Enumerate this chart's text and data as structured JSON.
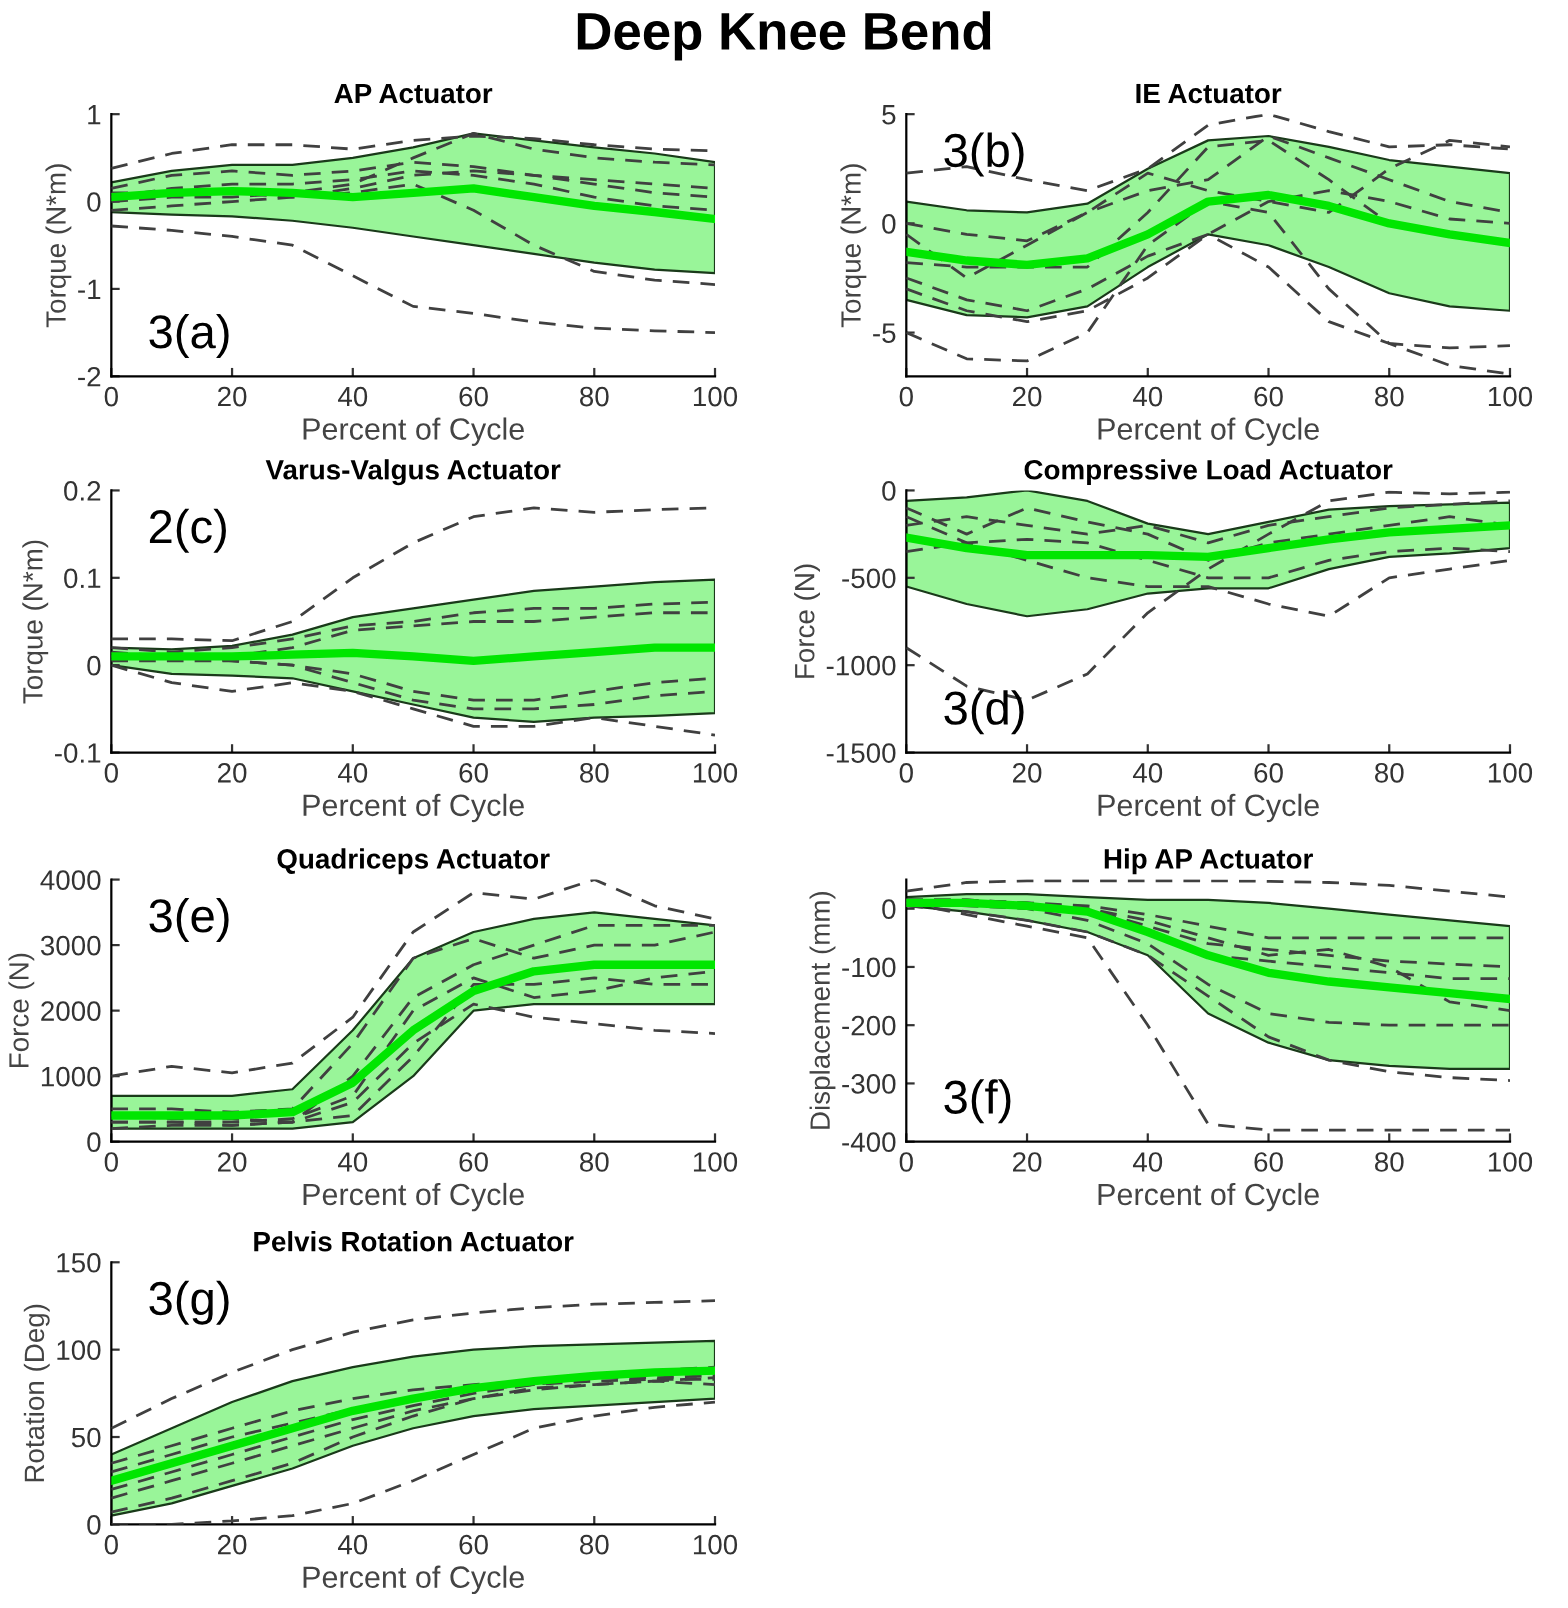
{
  "chart_data": [
    {
      "type": "other",
      "title": "Deep Knee Bend"
    },
    {
      "type": "line",
      "title": "AP Actuator",
      "xlabel": "Percent of Cycle",
      "ylabel": "Torque (N*m)",
      "annotations": [
        "3(a)"
      ],
      "x": [
        0,
        10,
        20,
        30,
        40,
        50,
        60,
        70,
        80,
        90,
        100
      ],
      "xlim": [
        0,
        100
      ],
      "xticks": [
        0,
        20,
        40,
        60,
        80,
        100
      ],
      "ylim": [
        -2,
        1
      ],
      "yticks": [
        -2,
        -1,
        0,
        1
      ],
      "series": [
        {
          "color": "#00e600",
          "line_style": "solid",
          "values": [
            0.05,
            0.1,
            0.12,
            0.1,
            0.05,
            0.1,
            0.15,
            0.05,
            -0.05,
            -0.12,
            -0.2
          ],
          "lower": [
            -0.12,
            -0.15,
            -0.17,
            -0.22,
            -0.3,
            -0.4,
            -0.5,
            -0.6,
            -0.7,
            -0.78,
            -0.82
          ],
          "upper": [
            0.22,
            0.35,
            0.42,
            0.42,
            0.5,
            0.62,
            0.78,
            0.7,
            0.62,
            0.55,
            0.45
          ]
        },
        {
          "color": "#404040",
          "line_style": "dashed",
          "values": [
            0.38,
            0.55,
            0.65,
            0.65,
            0.6,
            0.7,
            0.75,
            0.72,
            0.65,
            0.6,
            0.58
          ]
        },
        {
          "color": "#404040",
          "line_style": "dashed",
          "values": [
            -0.28,
            -0.33,
            -0.4,
            -0.5,
            -0.85,
            -1.2,
            -1.28,
            -1.38,
            -1.45,
            -1.48,
            -1.5
          ]
        },
        {
          "color": "#404040",
          "line_style": "dashed",
          "values": [
            0.0,
            0.05,
            0.05,
            0.1,
            0.2,
            0.5,
            0.78,
            0.6,
            0.5,
            0.45,
            0.42
          ]
        },
        {
          "color": "#404040",
          "line_style": "dashed",
          "values": [
            0.15,
            0.3,
            0.35,
            0.3,
            0.35,
            0.45,
            0.4,
            0.3,
            0.25,
            0.2,
            0.15
          ]
        },
        {
          "color": "#404040",
          "line_style": "dashed",
          "values": [
            0.1,
            0.1,
            0.1,
            0.05,
            0.1,
            0.2,
            -0.1,
            -0.5,
            -0.8,
            -0.9,
            -0.95
          ]
        },
        {
          "color": "#404040",
          "line_style": "dashed",
          "values": [
            -0.1,
            -0.05,
            0.0,
            0.05,
            0.15,
            0.3,
            0.35,
            0.3,
            0.2,
            0.1,
            0.05
          ]
        },
        {
          "color": "#404040",
          "line_style": "dashed",
          "values": [
            0.05,
            0.15,
            0.2,
            0.2,
            0.25,
            0.35,
            0.3,
            0.2,
            0.05,
            -0.05,
            -0.1
          ]
        }
      ]
    },
    {
      "type": "line",
      "title": "IE Actuator",
      "xlabel": "Percent of Cycle",
      "ylabel": "Torque (N*m)",
      "annotations": [
        "3(b)"
      ],
      "x": [
        0,
        10,
        20,
        30,
        40,
        50,
        60,
        70,
        80,
        90,
        100
      ],
      "xlim": [
        0,
        100
      ],
      "xticks": [
        0,
        20,
        40,
        60,
        80,
        100
      ],
      "ylim": [
        -7,
        5
      ],
      "yticks": [
        -5,
        0,
        5
      ],
      "series": [
        {
          "color": "#00e600",
          "line_style": "solid",
          "values": [
            -1.3,
            -1.7,
            -1.9,
            -1.6,
            -0.5,
            1.0,
            1.3,
            0.8,
            0.0,
            -0.5,
            -0.9
          ],
          "lower": [
            -3.5,
            -4.2,
            -4.3,
            -3.8,
            -2.0,
            -0.5,
            -1.0,
            -2.0,
            -3.2,
            -3.8,
            -4.0
          ],
          "upper": [
            1.0,
            0.6,
            0.5,
            0.9,
            2.5,
            3.8,
            4.0,
            3.5,
            2.9,
            2.6,
            2.3
          ]
        },
        {
          "color": "#404040",
          "line_style": "dashed",
          "values": [
            2.3,
            2.6,
            2.0,
            1.5,
            2.5,
            4.5,
            5.0,
            4.2,
            3.5,
            3.6,
            3.4
          ]
        },
        {
          "color": "#404040",
          "line_style": "dashed",
          "values": [
            -5.0,
            -6.2,
            -6.3,
            -5.0,
            -1.0,
            1.0,
            0.5,
            -3.0,
            -5.5,
            -5.7,
            -5.6
          ]
        },
        {
          "color": "#404040",
          "line_style": "dashed",
          "values": [
            -0.5,
            -2.5,
            -1.0,
            0.5,
            1.5,
            2.0,
            4.0,
            3.0,
            2.0,
            1.0,
            0.5
          ]
        },
        {
          "color": "#404040",
          "line_style": "dashed",
          "values": [
            -2.5,
            -3.5,
            -4.0,
            -3.0,
            -1.5,
            -0.5,
            -2.0,
            -4.5,
            -5.5,
            -6.5,
            -6.9
          ]
        },
        {
          "color": "#404040",
          "line_style": "dashed",
          "values": [
            -1.8,
            -2.0,
            -2.0,
            -2.0,
            0.5,
            3.5,
            3.8,
            2.0,
            0.0,
            -0.5,
            -0.8
          ]
        },
        {
          "color": "#404040",
          "line_style": "dashed",
          "values": [
            0.0,
            -0.5,
            -0.8,
            0.5,
            2.3,
            1.5,
            1.0,
            0.5,
            2.5,
            3.8,
            3.5
          ]
        },
        {
          "color": "#404040",
          "line_style": "dashed",
          "values": [
            -3.0,
            -4.0,
            -4.5,
            -4.0,
            -2.5,
            -0.5,
            1.0,
            1.5,
            1.0,
            0.2,
            0.0
          ]
        }
      ]
    },
    {
      "type": "line",
      "title": "Varus-Valgus Actuator",
      "xlabel": "Percent of Cycle",
      "ylabel": "Torque (N*m)",
      "annotations": [
        "2(c)"
      ],
      "x": [
        0,
        10,
        20,
        30,
        40,
        50,
        60,
        70,
        80,
        90,
        100
      ],
      "xlim": [
        0,
        100
      ],
      "xticks": [
        0,
        20,
        40,
        60,
        80,
        100
      ],
      "ylim": [
        -0.1,
        0.2
      ],
      "yticks": [
        -0.1,
        0,
        0.1,
        0.2
      ],
      "series": [
        {
          "color": "#00e600",
          "line_style": "solid",
          "values": [
            0.01,
            0.01,
            0.01,
            0.012,
            0.014,
            0.01,
            0.005,
            0.01,
            0.015,
            0.02,
            0.02
          ],
          "lower": [
            0.0,
            -0.01,
            -0.012,
            -0.015,
            -0.03,
            -0.045,
            -0.06,
            -0.065,
            -0.06,
            -0.058,
            -0.055
          ],
          "upper": [
            0.02,
            0.018,
            0.022,
            0.035,
            0.055,
            0.065,
            0.075,
            0.085,
            0.09,
            0.095,
            0.098
          ]
        },
        {
          "color": "#404040",
          "line_style": "dashed",
          "values": [
            0.03,
            0.03,
            0.028,
            0.05,
            0.1,
            0.14,
            0.17,
            0.18,
            0.175,
            0.178,
            0.18
          ]
        },
        {
          "color": "#404040",
          "line_style": "dashed",
          "values": [
            0.0,
            -0.02,
            -0.03,
            -0.02,
            -0.03,
            -0.05,
            -0.07,
            -0.07,
            -0.06,
            -0.07,
            -0.08
          ]
        },
        {
          "color": "#404040",
          "line_style": "dashed",
          "values": [
            0.02,
            0.015,
            0.02,
            0.03,
            0.045,
            0.05,
            0.06,
            0.065,
            0.065,
            0.07,
            0.072
          ]
        },
        {
          "color": "#404040",
          "line_style": "dashed",
          "values": [
            0.01,
            0.01,
            0.01,
            0.02,
            0.04,
            0.045,
            0.05,
            0.05,
            0.055,
            0.06,
            0.06
          ]
        },
        {
          "color": "#404040",
          "line_style": "dashed",
          "values": [
            0.015,
            0.01,
            0.005,
            0.0,
            -0.01,
            -0.03,
            -0.04,
            -0.04,
            -0.03,
            -0.02,
            -0.015
          ]
        },
        {
          "color": "#404040",
          "line_style": "dashed",
          "values": [
            0.005,
            0.005,
            0.005,
            0.0,
            -0.02,
            -0.04,
            -0.05,
            -0.05,
            -0.045,
            -0.035,
            -0.03
          ]
        }
      ]
    },
    {
      "type": "line",
      "title": "Compressive Load Actuator",
      "xlabel": "Percent of Cycle",
      "ylabel": "Force (N)",
      "annotations": [
        "3(d)"
      ],
      "x": [
        0,
        10,
        20,
        30,
        40,
        50,
        60,
        70,
        80,
        90,
        100
      ],
      "xlim": [
        0,
        100
      ],
      "xticks": [
        0,
        20,
        40,
        60,
        80,
        100
      ],
      "ylim": [
        -1500,
        0
      ],
      "yticks": [
        -1500,
        -1000,
        -500,
        0
      ],
      "series": [
        {
          "color": "#00e600",
          "line_style": "solid",
          "values": [
            -270,
            -330,
            -370,
            -370,
            -370,
            -380,
            -330,
            -280,
            -240,
            -220,
            -200
          ],
          "lower": [
            -550,
            -650,
            -720,
            -680,
            -590,
            -560,
            -560,
            -450,
            -380,
            -360,
            -330
          ],
          "upper": [
            -60,
            -40,
            0,
            -60,
            -190,
            -250,
            -180,
            -110,
            -90,
            -80,
            -70
          ]
        },
        {
          "color": "#404040",
          "line_style": "dashed",
          "values": [
            -900,
            -1120,
            -1200,
            -1050,
            -700,
            -450,
            -250,
            -60,
            -10,
            -20,
            -10
          ]
        },
        {
          "color": "#404040",
          "line_style": "dashed",
          "values": [
            -150,
            -300,
            -400,
            -500,
            -550,
            -550,
            -650,
            -720,
            -500,
            -450,
            -400
          ]
        },
        {
          "color": "#404040",
          "line_style": "dashed",
          "values": [
            -200,
            -150,
            -200,
            -250,
            -200,
            -300,
            -200,
            -150,
            -100,
            -80,
            -60
          ]
        },
        {
          "color": "#404040",
          "line_style": "dashed",
          "values": [
            -350,
            -300,
            -280,
            -300,
            -400,
            -500,
            -500,
            -400,
            -350,
            -330,
            -350
          ]
        },
        {
          "color": "#404040",
          "line_style": "dashed",
          "values": [
            -100,
            -250,
            -100,
            -180,
            -250,
            -400,
            -300,
            -250,
            -200,
            -150,
            -200
          ]
        }
      ]
    },
    {
      "type": "line",
      "title": "Quadriceps Actuator",
      "xlabel": "Percent of Cycle",
      "ylabel": "Force (N)",
      "annotations": [
        "3(e)"
      ],
      "x": [
        0,
        10,
        20,
        30,
        40,
        50,
        60,
        70,
        80,
        90,
        100
      ],
      "xlim": [
        0,
        100
      ],
      "xticks": [
        0,
        20,
        40,
        60,
        80,
        100
      ],
      "ylim": [
        0,
        4000
      ],
      "yticks": [
        0,
        1000,
        2000,
        3000,
        4000
      ],
      "series": [
        {
          "color": "#00e600",
          "line_style": "solid",
          "values": [
            400,
            400,
            400,
            450,
            900,
            1700,
            2300,
            2600,
            2700,
            2700,
            2700
          ],
          "lower": [
            200,
            200,
            200,
            200,
            300,
            1000,
            2000,
            2100,
            2100,
            2100,
            2100
          ],
          "upper": [
            700,
            700,
            700,
            800,
            1700,
            2800,
            3200,
            3400,
            3500,
            3400,
            3300
          ]
        },
        {
          "color": "#404040",
          "line_style": "dashed",
          "values": [
            1000,
            1150,
            1050,
            1200,
            1900,
            3200,
            3800,
            3700,
            4000,
            3600,
            3400
          ]
        },
        {
          "color": "#404040",
          "line_style": "dashed",
          "values": [
            300,
            300,
            250,
            300,
            600,
            1500,
            2100,
            1900,
            1800,
            1700,
            1650
          ]
        },
        {
          "color": "#404040",
          "line_style": "dashed",
          "values": [
            500,
            500,
            450,
            500,
            1500,
            2800,
            3100,
            2800,
            3000,
            3000,
            3200
          ]
        },
        {
          "color": "#404040",
          "line_style": "dashed",
          "values": [
            200,
            250,
            250,
            300,
            400,
            1300,
            2400,
            2400,
            2500,
            2400,
            2400
          ]
        },
        {
          "color": "#404040",
          "line_style": "dashed",
          "values": [
            400,
            350,
            350,
            300,
            1000,
            2200,
            2700,
            3000,
            3300,
            3300,
            3300
          ]
        },
        {
          "color": "#404040",
          "line_style": "dashed",
          "values": [
            300,
            300,
            300,
            350,
            700,
            2000,
            2500,
            2200,
            2300,
            2500,
            2600
          ]
        }
      ]
    },
    {
      "type": "line",
      "title": "Hip AP Actuator",
      "xlabel": "Percent of Cycle",
      "ylabel": "Displacement (mm)",
      "annotations": [
        "3(f)"
      ],
      "x": [
        0,
        10,
        20,
        30,
        40,
        50,
        60,
        70,
        80,
        90,
        100
      ],
      "xlim": [
        0,
        100
      ],
      "xticks": [
        0,
        20,
        40,
        60,
        80,
        100
      ],
      "ylim": [
        -400,
        50
      ],
      "yticks": [
        -400,
        -300,
        -200,
        -100,
        0
      ],
      "series": [
        {
          "color": "#00e600",
          "line_style": "solid",
          "values": [
            10,
            10,
            5,
            -5,
            -40,
            -80,
            -110,
            -125,
            -135,
            -145,
            -155
          ],
          "lower": [
            5,
            -5,
            -20,
            -40,
            -80,
            -180,
            -230,
            -260,
            -270,
            -275,
            -275
          ],
          "upper": [
            20,
            25,
            25,
            20,
            15,
            15,
            10,
            0,
            -10,
            -20,
            -30
          ]
        },
        {
          "color": "#404040",
          "line_style": "dashed",
          "values": [
            30,
            45,
            48,
            48,
            48,
            48,
            47,
            45,
            40,
            30,
            20
          ]
        },
        {
          "color": "#404040",
          "line_style": "dashed",
          "values": [
            10,
            -10,
            -30,
            -50,
            -200,
            -370,
            -380,
            -380,
            -380,
            -380,
            -380
          ]
        },
        {
          "color": "#404040",
          "line_style": "dashed",
          "values": [
            15,
            10,
            5,
            0,
            -20,
            -50,
            -80,
            -70,
            -100,
            -160,
            -175
          ]
        },
        {
          "color": "#404040",
          "line_style": "dashed",
          "values": [
            10,
            5,
            0,
            -20,
            -60,
            -130,
            -180,
            -195,
            -200,
            -200,
            -200
          ]
        },
        {
          "color": "#404040",
          "line_style": "dashed",
          "values": [
            15,
            15,
            10,
            0,
            -30,
            -60,
            -70,
            -80,
            -90,
            -95,
            -100
          ]
        },
        {
          "color": "#404040",
          "line_style": "dashed",
          "values": [
            10,
            10,
            5,
            -5,
            -40,
            -80,
            -90,
            -100,
            -110,
            -120,
            -120
          ]
        },
        {
          "color": "#404040",
          "line_style": "dashed",
          "values": [
            5,
            -5,
            -20,
            -40,
            -80,
            -150,
            -220,
            -260,
            -280,
            -290,
            -295
          ]
        },
        {
          "color": "#404040",
          "line_style": "dashed",
          "values": [
            15,
            15,
            10,
            5,
            -10,
            -30,
            -50,
            -50,
            -50,
            -50,
            -50
          ]
        }
      ]
    },
    {
      "type": "line",
      "title": "Pelvis Rotation Actuator",
      "xlabel": "Percent of Cycle",
      "ylabel": "Rotation (Deg)",
      "annotations": [
        "3(g)"
      ],
      "x": [
        0,
        10,
        20,
        30,
        40,
        50,
        60,
        70,
        80,
        90,
        100
      ],
      "xlim": [
        0,
        100
      ],
      "xticks": [
        0,
        20,
        40,
        60,
        80,
        100
      ],
      "ylim": [
        0,
        150
      ],
      "yticks": [
        0,
        50,
        100,
        150
      ],
      "series": [
        {
          "color": "#00e600",
          "line_style": "solid",
          "values": [
            25,
            35,
            45,
            55,
            65,
            72,
            78,
            82,
            85,
            87,
            88
          ],
          "lower": [
            5,
            12,
            22,
            32,
            45,
            55,
            62,
            66,
            68,
            70,
            72
          ],
          "upper": [
            40,
            55,
            70,
            82,
            90,
            96,
            100,
            102,
            103,
            104,
            105
          ]
        },
        {
          "color": "#404040",
          "line_style": "dashed",
          "values": [
            55,
            72,
            87,
            100,
            110,
            117,
            121,
            124,
            126,
            127,
            128
          ]
        },
        {
          "color": "#404040",
          "line_style": "dashed",
          "values": [
            0,
            0,
            2,
            5,
            12,
            25,
            40,
            55,
            62,
            67,
            70
          ]
        },
        {
          "color": "#404040",
          "line_style": "dashed",
          "values": [
            35,
            45,
            55,
            65,
            72,
            77,
            80,
            82,
            84,
            84,
            85
          ]
        },
        {
          "color": "#404040",
          "line_style": "dashed",
          "values": [
            30,
            40,
            50,
            58,
            66,
            72,
            77,
            80,
            82,
            83,
            83
          ]
        },
        {
          "color": "#404040",
          "line_style": "dashed",
          "values": [
            15,
            25,
            35,
            45,
            55,
            65,
            72,
            77,
            80,
            82,
            84
          ]
        },
        {
          "color": "#404040",
          "line_style": "dashed",
          "values": [
            7,
            15,
            25,
            35,
            50,
            62,
            72,
            78,
            80,
            82,
            80
          ]
        },
        {
          "color": "#404040",
          "line_style": "dashed",
          "values": [
            20,
            30,
            40,
            50,
            60,
            68,
            75,
            80,
            84,
            88,
            90
          ]
        }
      ]
    }
  ]
}
